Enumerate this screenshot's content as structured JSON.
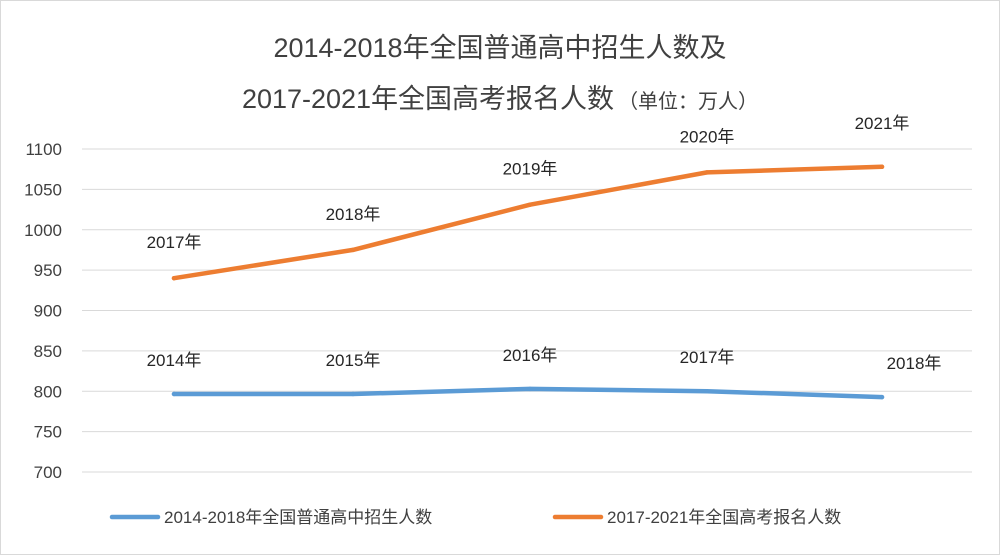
{
  "chart_data": {
    "type": "line",
    "title": "2014-2018年全国普通高中招生人数及",
    "title_line2": "2017-2021年全国高考报名人数",
    "title_unit": "（单位：万人）",
    "ylim": [
      700,
      1100
    ],
    "yticks": [
      "1100",
      "1050",
      "1000",
      "950",
      "900",
      "850",
      "800",
      "750",
      "700"
    ],
    "grid": true,
    "legend_position": "bottom",
    "series": [
      {
        "name": "2014-2018年全国普通高中招生人数",
        "color": "#5b9bd5",
        "labels": [
          "2014年",
          "2015年",
          "2016年",
          "2017年",
          "2018年"
        ],
        "values": [
          796.6,
          796.6,
          802.9,
          800.1,
          792.7
        ]
      },
      {
        "name": "2017-2021年全国高考报名人数",
        "color": "#ed7d31",
        "labels": [
          "2017年",
          "2018年",
          "2019年",
          "2020年",
          "2021年"
        ],
        "values": [
          940,
          975,
          1031,
          1071,
          1078
        ]
      }
    ]
  }
}
